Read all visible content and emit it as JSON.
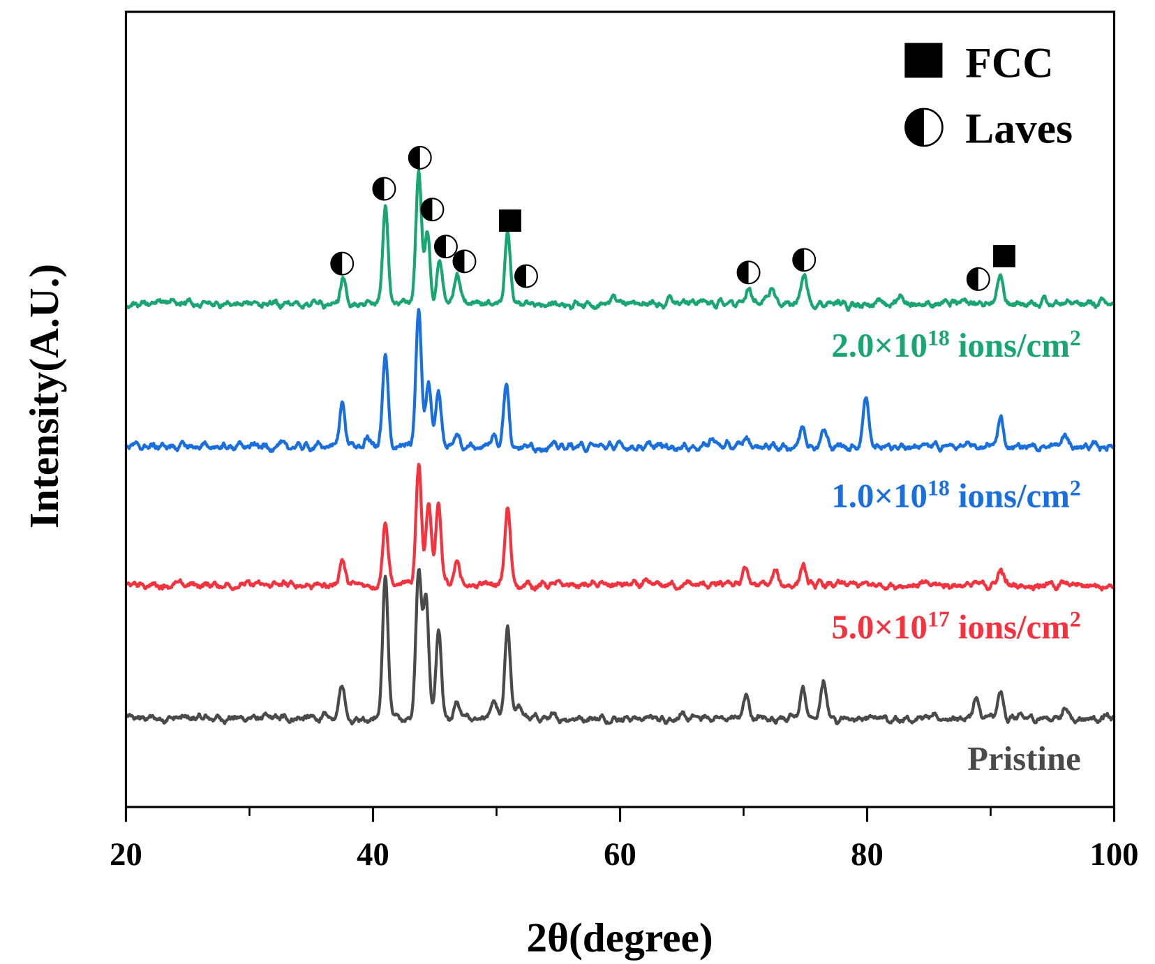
{
  "chart_data": {
    "type": "line",
    "title": "",
    "xlabel": "2θ(degree)",
    "ylabel": "Intensity(A.U.)",
    "xlim": [
      20,
      100
    ],
    "ylim": [
      0,
      1075
    ],
    "xticks": [
      20,
      40,
      60,
      80,
      100
    ],
    "xticks_labels": [
      "20",
      "40",
      "60",
      "80",
      "100"
    ],
    "xminor_ticks": [
      30,
      50,
      70,
      90
    ],
    "grid": false,
    "legend": {
      "placement": "top-right",
      "entries": [
        {
          "label": "FCC",
          "marker": "filled-square"
        },
        {
          "label": "Laves",
          "marker": "half-filled-circle"
        }
      ]
    },
    "series": [
      {
        "name": "Pristine",
        "label": {
          "base": "Pristine",
          "exp": "",
          "unit": "",
          "unit_exp": ""
        },
        "color": "#4a4a4a",
        "baseline": 120,
        "peaks": [
          [
            37.5,
            45
          ],
          [
            41.0,
            190
          ],
          [
            43.7,
            200
          ],
          [
            44.3,
            165
          ],
          [
            45.3,
            120
          ],
          [
            46.8,
            20
          ],
          [
            49.8,
            20
          ],
          [
            50.9,
            120
          ],
          [
            51.8,
            20
          ],
          [
            70.2,
            30
          ],
          [
            74.8,
            40
          ],
          [
            76.5,
            50
          ],
          [
            88.8,
            25
          ],
          [
            90.8,
            35
          ],
          [
            96.0,
            15
          ]
        ]
      },
      {
        "name": "5.0×10^17 ions/cm^2",
        "label": {
          "base": "5.0×10",
          "exp": "17",
          "unit": " ions/cm",
          "unit_exp": "2"
        },
        "color": "#f5333f",
        "baseline": 300,
        "peaks": [
          [
            37.5,
            35
          ],
          [
            41.0,
            85
          ],
          [
            43.7,
            165
          ],
          [
            44.5,
            110
          ],
          [
            45.3,
            105
          ],
          [
            46.8,
            35
          ],
          [
            50.9,
            105
          ],
          [
            70.1,
            25
          ],
          [
            72.6,
            18
          ],
          [
            74.8,
            25
          ],
          [
            90.8,
            20
          ]
        ]
      },
      {
        "name": "1.0×10^18 ions/cm^2",
        "label": {
          "base": "1.0×10",
          "exp": "18",
          "unit": " ions/cm",
          "unit_exp": "2"
        },
        "color": "#1a6fdf",
        "baseline": 487,
        "peaks": [
          [
            37.5,
            60
          ],
          [
            39.6,
            12
          ],
          [
            41.0,
            120
          ],
          [
            43.7,
            185
          ],
          [
            44.5,
            90
          ],
          [
            45.3,
            75
          ],
          [
            46.8,
            15
          ],
          [
            49.8,
            15
          ],
          [
            50.8,
            85
          ],
          [
            67.5,
            12
          ],
          [
            70.2,
            12
          ],
          [
            74.8,
            30
          ],
          [
            76.5,
            22
          ],
          [
            79.9,
            70
          ],
          [
            90.8,
            38
          ],
          [
            96.0,
            15
          ]
        ]
      },
      {
        "name": "2.0×10^18 ions/cm^2",
        "label": {
          "base": "2.0×10",
          "exp": "18",
          "unit": " ions/cm",
          "unit_exp": "2"
        },
        "color": "#1aa672",
        "baseline": 680,
        "peaks": [
          [
            37.6,
            30
          ],
          [
            41.0,
            130
          ],
          [
            43.7,
            175
          ],
          [
            44.4,
            100
          ],
          [
            45.4,
            60
          ],
          [
            46.8,
            45
          ],
          [
            50.9,
            95
          ],
          [
            59.5,
            8
          ],
          [
            64.0,
            12
          ],
          [
            70.4,
            18
          ],
          [
            72.3,
            22
          ],
          [
            74.9,
            40
          ],
          [
            82.7,
            12
          ],
          [
            90.8,
            38
          ],
          [
            94.3,
            10
          ]
        ]
      }
    ],
    "annotations": [
      {
        "phase": "Laves",
        "x": 37.5,
        "y": 734
      },
      {
        "phase": "Laves",
        "x": 40.9,
        "y": 835
      },
      {
        "phase": "Laves",
        "x": 43.8,
        "y": 877
      },
      {
        "phase": "Laves",
        "x": 44.8,
        "y": 807
      },
      {
        "phase": "Laves",
        "x": 45.9,
        "y": 757
      },
      {
        "phase": "Laves",
        "x": 47.4,
        "y": 737
      },
      {
        "phase": "Laves",
        "x": 52.4,
        "y": 717
      },
      {
        "phase": "Laves",
        "x": 70.4,
        "y": 722
      },
      {
        "phase": "Laves",
        "x": 74.9,
        "y": 739
      },
      {
        "phase": "Laves",
        "x": 89.0,
        "y": 713
      },
      {
        "phase": "FCC",
        "x": 51.1,
        "y": 792
      },
      {
        "phase": "FCC",
        "x": 91.1,
        "y": 744
      }
    ]
  }
}
